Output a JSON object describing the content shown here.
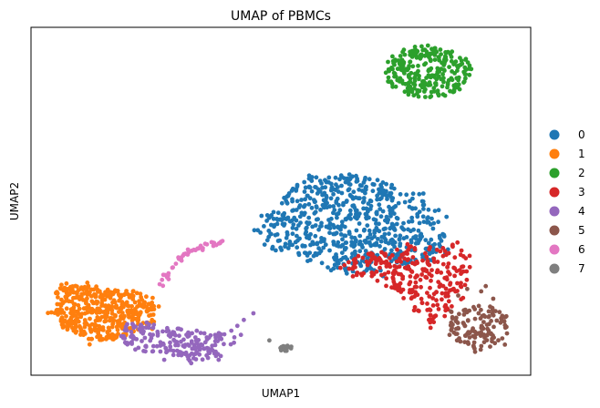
{
  "chart_data": {
    "type": "scatter",
    "title": "UMAP of PBMCs",
    "xlabel": "UMAP1",
    "ylabel": "UMAP2",
    "xlim": [
      0,
      100
    ],
    "ylim": [
      0,
      100
    ],
    "grid": false,
    "ticks": false,
    "legend": {
      "placement": "outside-right",
      "entries": [
        "0",
        "1",
        "2",
        "3",
        "4",
        "5",
        "6",
        "7"
      ]
    },
    "series": [
      {
        "name": "0",
        "color": "#1f77b4",
        "shape": "blob",
        "hull": [
          [
            47,
            46
          ],
          [
            52,
            54
          ],
          [
            56,
            57
          ],
          [
            63,
            58
          ],
          [
            70,
            56
          ],
          [
            77,
            52
          ],
          [
            81,
            47
          ],
          [
            83,
            41
          ],
          [
            83,
            36
          ],
          [
            80,
            33
          ],
          [
            75,
            32
          ],
          [
            70,
            30
          ],
          [
            64,
            29
          ],
          [
            59,
            31
          ],
          [
            56,
            34
          ],
          [
            52,
            35
          ],
          [
            48,
            37
          ],
          [
            46,
            42
          ]
        ],
        "count": 650,
        "spread": 1.6
      },
      {
        "name": "1",
        "color": "#ff7f0e",
        "shape": "blob",
        "hull": [
          [
            5,
            24
          ],
          [
            7,
            26
          ],
          [
            11,
            26
          ],
          [
            16,
            25
          ],
          [
            21,
            24
          ],
          [
            24,
            22
          ],
          [
            25,
            19
          ],
          [
            24,
            15
          ],
          [
            21,
            12
          ],
          [
            16,
            10
          ],
          [
            12,
            10
          ],
          [
            9,
            11
          ],
          [
            6,
            14
          ],
          [
            5,
            18
          ]
        ],
        "count": 420,
        "spread": 1.2
      },
      {
        "name": "2",
        "color": "#2ca02c",
        "shape": "ellipse",
        "center": [
          79.5,
          87.3
        ],
        "radius": [
          8.8,
          7.5
        ],
        "count": 280
      },
      {
        "name": "3",
        "color": "#d62728",
        "shape": "blob",
        "hull": [
          [
            65,
            35
          ],
          [
            70,
            36
          ],
          [
            75,
            37
          ],
          [
            80,
            37
          ],
          [
            85,
            37
          ],
          [
            88,
            34
          ],
          [
            88,
            29
          ],
          [
            86,
            22
          ],
          [
            83,
            17
          ],
          [
            80,
            15
          ],
          [
            77,
            19
          ],
          [
            73,
            24
          ],
          [
            69,
            27
          ],
          [
            65,
            29
          ],
          [
            62,
            31
          ]
        ],
        "count": 260,
        "spread": 1.2
      },
      {
        "name": "4",
        "color": "#9467bd",
        "shape": "blob",
        "hull": [
          [
            18,
            14
          ],
          [
            21,
            16
          ],
          [
            26,
            14
          ],
          [
            33,
            13
          ],
          [
            38,
            12
          ],
          [
            39,
            9
          ],
          [
            37,
            5
          ],
          [
            32,
            4
          ],
          [
            26,
            5
          ],
          [
            21,
            7
          ],
          [
            18,
            10
          ]
        ],
        "count": 190,
        "spread": 1.4,
        "extra": [
          [
            40.1,
            12.8
          ],
          [
            41.3,
            14.2
          ],
          [
            42.6,
            15.9
          ],
          [
            44.5,
            17.8
          ],
          [
            40.7,
            10.9
          ],
          [
            42.0,
            11.6
          ]
        ]
      },
      {
        "name": "5",
        "color": "#8c564b",
        "shape": "blob",
        "hull": [
          [
            84,
            18
          ],
          [
            88,
            20
          ],
          [
            92,
            20
          ],
          [
            95,
            17
          ],
          [
            96,
            13
          ],
          [
            94,
            9
          ],
          [
            90,
            7
          ],
          [
            86,
            8
          ],
          [
            84,
            12
          ]
        ],
        "count": 120,
        "spread": 1.0,
        "extra": [
          [
            85.5,
            22.9
          ],
          [
            87.3,
            24.8
          ],
          [
            90.1,
            24.1
          ],
          [
            92.5,
            22.0
          ],
          [
            91.0,
            25.6
          ]
        ]
      },
      {
        "name": "6",
        "color": "#e377c2",
        "shape": "curve",
        "points": [
          [
            25.6,
            24.2
          ],
          [
            26.8,
            27.6
          ],
          [
            28.1,
            30.5
          ],
          [
            29.6,
            33.2
          ],
          [
            31.2,
            35.0
          ],
          [
            33.5,
            36.5
          ],
          [
            36.1,
            37.6
          ],
          [
            38.3,
            38.0
          ]
        ],
        "count": 45
      },
      {
        "name": "7",
        "color": "#7f7f7f",
        "shape": "ellipse",
        "center": [
          51.1,
          7.6
        ],
        "radius": [
          1.6,
          0.9
        ],
        "count": 16,
        "extra": [
          [
            47.7,
            10.0
          ]
        ]
      }
    ]
  }
}
